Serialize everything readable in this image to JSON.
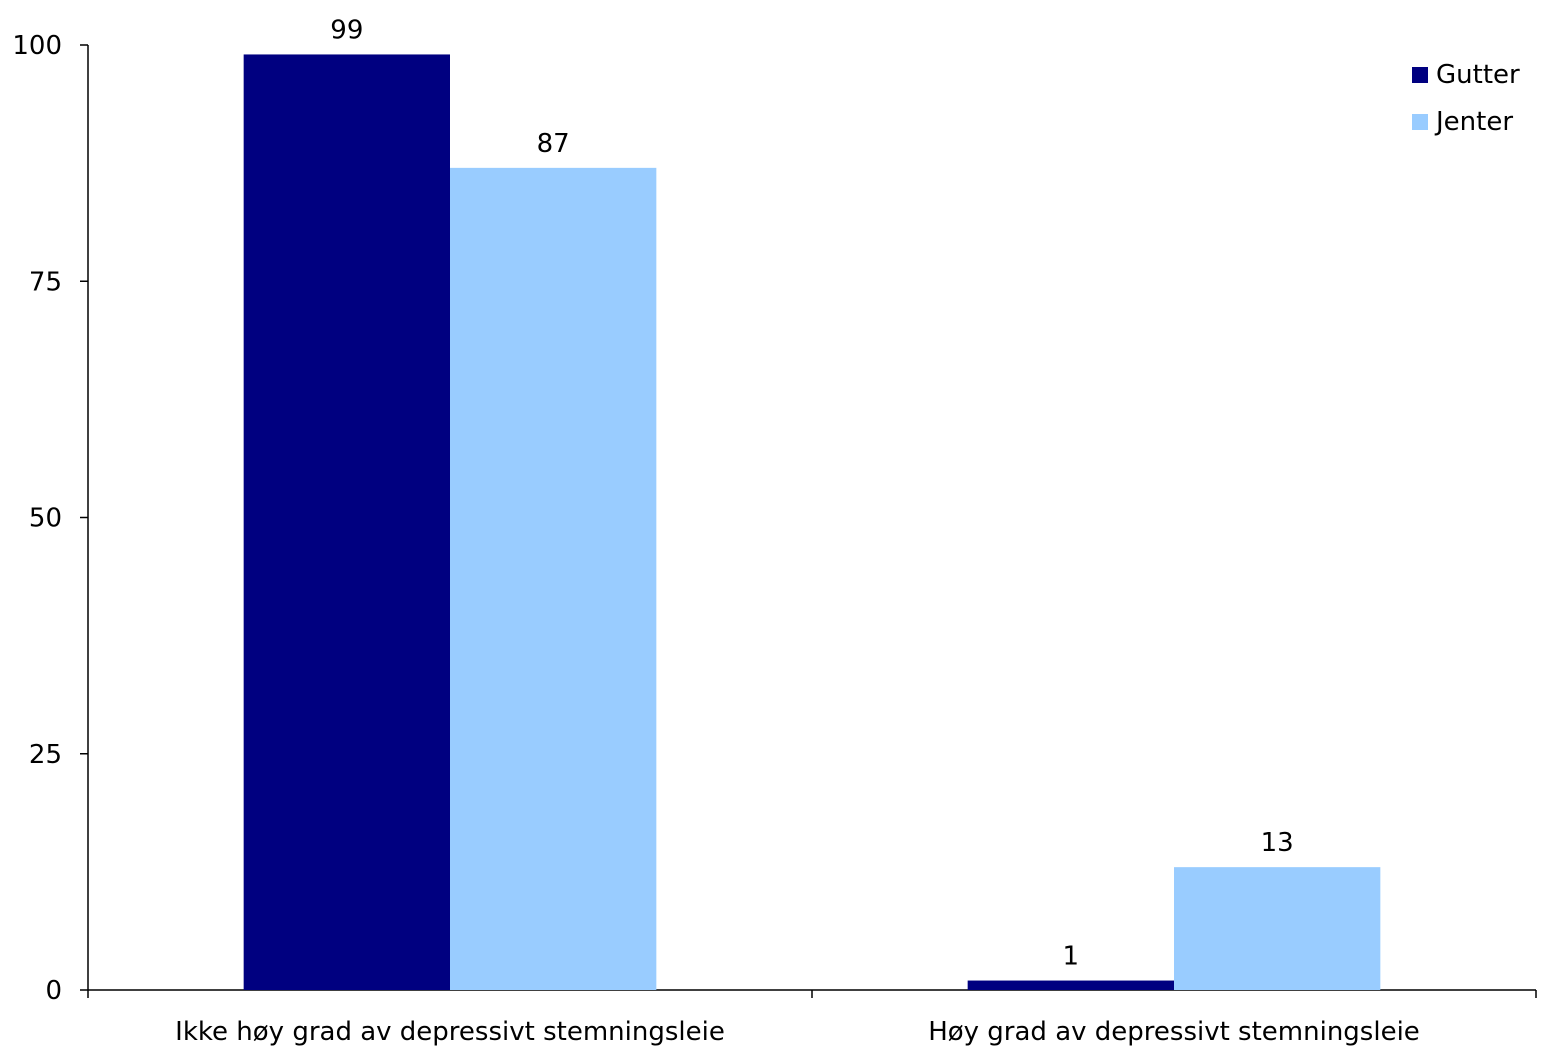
{
  "chart_data": {
    "type": "bar",
    "title": "",
    "xlabel": "",
    "ylabel": "",
    "categories": [
      "Ikke høy grad av depressivt stemningsleie",
      "Høy grad av depressivt stemningsleie"
    ],
    "series": [
      {
        "name": "Gutter",
        "values": [
          99,
          1
        ],
        "labels": [
          "99",
          "1"
        ],
        "color": "#000080"
      },
      {
        "name": "Jenter",
        "values": [
          87,
          13
        ],
        "labels": [
          "87",
          "13"
        ],
        "color": "#99ccff"
      }
    ],
    "ylim": [
      0,
      100
    ],
    "yticks": [
      0,
      25,
      50,
      75,
      100
    ],
    "ytick_labels": [
      "0",
      "25",
      "50",
      "75",
      "100"
    ],
    "grid": false,
    "legend_position": "top-right"
  }
}
